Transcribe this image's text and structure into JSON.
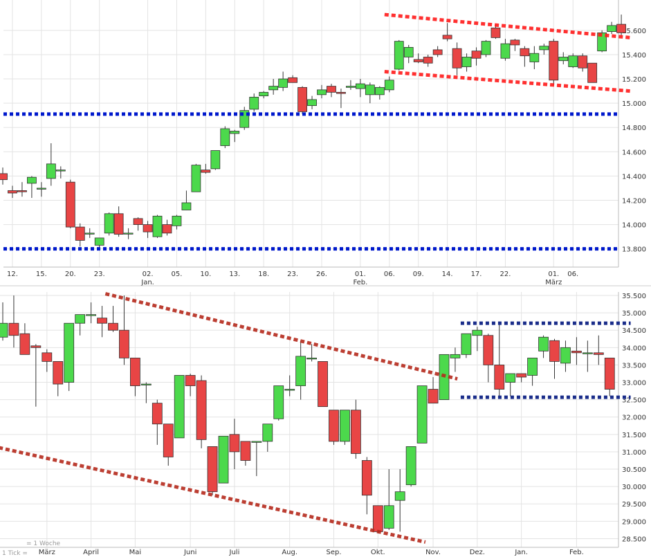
{
  "colors": {
    "up": "#4cd94c",
    "down": "#e84545",
    "wick": "#333333",
    "grid": "#e3e3e3",
    "support_blue": "#0019cc",
    "channel_red": "#ff1a1a",
    "channel_dark_red": "#b52a1c",
    "range_navy": "#1a2d8a"
  },
  "footer": {
    "tick_note": "1 Tick =",
    "period_note": "= 1 Woche"
  },
  "chart_data": [
    {
      "type": "candlestick",
      "interval": "daily",
      "grid": true,
      "ylim": [
        13.65,
        15.85
      ],
      "yticks": [
        13.8,
        14.0,
        14.2,
        14.4,
        14.6,
        14.8,
        15.0,
        15.2,
        15.4,
        15.6
      ],
      "ytick_labels": [
        "13.800",
        "14.000",
        "14.200",
        "14.400",
        "14.600",
        "14.800",
        "15.000",
        "15.200",
        "15.400",
        "15.600"
      ],
      "xtick_labels": [
        {
          "i": 1,
          "label": "12."
        },
        {
          "i": 4,
          "label": "15."
        },
        {
          "i": 7,
          "label": "20."
        },
        {
          "i": 10,
          "label": "23."
        },
        {
          "i": 15,
          "label": "02.",
          "sub": "Jan."
        },
        {
          "i": 18,
          "label": "05."
        },
        {
          "i": 21,
          "label": "10."
        },
        {
          "i": 24,
          "label": "13."
        },
        {
          "i": 27,
          "label": "18."
        },
        {
          "i": 30,
          "label": "23."
        },
        {
          "i": 33,
          "label": "26."
        },
        {
          "i": 37,
          "label": "01.",
          "sub": "Feb."
        },
        {
          "i": 40,
          "label": "06."
        },
        {
          "i": 43,
          "label": "09."
        },
        {
          "i": 46,
          "label": "14."
        },
        {
          "i": 49,
          "label": "17."
        },
        {
          "i": 52,
          "label": "22."
        },
        {
          "i": 57,
          "label": "01.",
          "sub": "März"
        },
        {
          "i": 59,
          "label": "06."
        }
      ],
      "candles": [
        {
          "o": 14.42,
          "h": 14.47,
          "l": 14.33,
          "c": 14.37
        },
        {
          "o": 14.28,
          "h": 14.32,
          "l": 14.22,
          "c": 14.26
        },
        {
          "o": 14.28,
          "h": 14.35,
          "l": 14.23,
          "c": 14.27
        },
        {
          "o": 14.34,
          "h": 14.4,
          "l": 14.22,
          "c": 14.39
        },
        {
          "o": 14.3,
          "h": 14.35,
          "l": 14.23,
          "c": 14.3
        },
        {
          "o": 14.38,
          "h": 14.67,
          "l": 14.32,
          "c": 14.5
        },
        {
          "o": 14.45,
          "h": 14.48,
          "l": 14.38,
          "c": 14.45
        },
        {
          "o": 14.35,
          "h": 14.37,
          "l": 13.97,
          "c": 13.98
        },
        {
          "o": 13.98,
          "h": 14.01,
          "l": 13.82,
          "c": 13.87
        },
        {
          "o": 13.93,
          "h": 13.97,
          "l": 13.89,
          "c": 13.93
        },
        {
          "o": 13.83,
          "h": 13.89,
          "l": 13.81,
          "c": 13.89
        },
        {
          "o": 13.93,
          "h": 14.1,
          "l": 13.91,
          "c": 14.09
        },
        {
          "o": 14.09,
          "h": 14.15,
          "l": 13.9,
          "c": 13.92
        },
        {
          "o": 13.93,
          "h": 13.97,
          "l": 13.88,
          "c": 13.93
        },
        {
          "o": 14.05,
          "h": 14.06,
          "l": 13.95,
          "c": 14.0
        },
        {
          "o": 14.0,
          "h": 14.03,
          "l": 13.89,
          "c": 13.94
        },
        {
          "o": 13.9,
          "h": 14.08,
          "l": 13.89,
          "c": 14.07
        },
        {
          "o": 14.0,
          "h": 14.04,
          "l": 13.91,
          "c": 13.93
        },
        {
          "o": 13.99,
          "h": 14.08,
          "l": 13.96,
          "c": 14.07
        },
        {
          "o": 14.12,
          "h": 14.28,
          "l": 14.12,
          "c": 14.18
        },
        {
          "o": 14.27,
          "h": 14.5,
          "l": 14.27,
          "c": 14.49
        },
        {
          "o": 14.45,
          "h": 14.5,
          "l": 14.42,
          "c": 14.43
        },
        {
          "o": 14.46,
          "h": 14.61,
          "l": 14.45,
          "c": 14.61
        },
        {
          "o": 14.65,
          "h": 14.81,
          "l": 14.63,
          "c": 14.79
        },
        {
          "o": 14.75,
          "h": 14.78,
          "l": 14.68,
          "c": 14.77
        },
        {
          "o": 14.8,
          "h": 14.97,
          "l": 14.78,
          "c": 14.94
        },
        {
          "o": 14.95,
          "h": 15.08,
          "l": 14.93,
          "c": 15.05
        },
        {
          "o": 15.06,
          "h": 15.1,
          "l": 15.04,
          "c": 15.09
        },
        {
          "o": 15.11,
          "h": 15.2,
          "l": 15.07,
          "c": 15.14
        },
        {
          "o": 15.13,
          "h": 15.26,
          "l": 15.1,
          "c": 15.2
        },
        {
          "o": 15.21,
          "h": 15.23,
          "l": 15.17,
          "c": 15.17
        },
        {
          "o": 15.13,
          "h": 15.14,
          "l": 14.91,
          "c": 14.93
        },
        {
          "o": 14.98,
          "h": 15.06,
          "l": 14.95,
          "c": 15.03
        },
        {
          "o": 15.07,
          "h": 15.15,
          "l": 15.04,
          "c": 15.11
        },
        {
          "o": 15.14,
          "h": 15.16,
          "l": 15.05,
          "c": 15.09
        },
        {
          "o": 15.09,
          "h": 15.12,
          "l": 14.96,
          "c": 15.08
        },
        {
          "o": 15.13,
          "h": 15.19,
          "l": 15.11,
          "c": 15.14
        },
        {
          "o": 15.12,
          "h": 15.2,
          "l": 15.05,
          "c": 15.16
        },
        {
          "o": 15.07,
          "h": 15.17,
          "l": 15.0,
          "c": 15.15
        },
        {
          "o": 15.07,
          "h": 15.14,
          "l": 15.03,
          "c": 15.13
        },
        {
          "o": 15.11,
          "h": 15.22,
          "l": 15.09,
          "c": 15.19
        },
        {
          "o": 15.28,
          "h": 15.52,
          "l": 15.27,
          "c": 15.51
        },
        {
          "o": 15.38,
          "h": 15.48,
          "l": 15.33,
          "c": 15.46
        },
        {
          "o": 15.36,
          "h": 15.41,
          "l": 15.33,
          "c": 15.34
        },
        {
          "o": 15.38,
          "h": 15.4,
          "l": 15.3,
          "c": 15.33
        },
        {
          "o": 15.44,
          "h": 15.47,
          "l": 15.38,
          "c": 15.4
        },
        {
          "o": 15.56,
          "h": 15.66,
          "l": 15.51,
          "c": 15.53
        },
        {
          "o": 15.45,
          "h": 15.5,
          "l": 15.23,
          "c": 15.29
        },
        {
          "o": 15.3,
          "h": 15.41,
          "l": 15.26,
          "c": 15.38
        },
        {
          "o": 15.43,
          "h": 15.46,
          "l": 15.31,
          "c": 15.37
        },
        {
          "o": 15.4,
          "h": 15.52,
          "l": 15.38,
          "c": 15.51
        },
        {
          "o": 15.62,
          "h": 15.65,
          "l": 15.53,
          "c": 15.54
        },
        {
          "o": 15.37,
          "h": 15.53,
          "l": 15.35,
          "c": 15.49
        },
        {
          "o": 15.52,
          "h": 15.53,
          "l": 15.43,
          "c": 15.48
        },
        {
          "o": 15.45,
          "h": 15.47,
          "l": 15.3,
          "c": 15.39
        },
        {
          "o": 15.34,
          "h": 15.47,
          "l": 15.28,
          "c": 15.41
        },
        {
          "o": 15.44,
          "h": 15.49,
          "l": 15.4,
          "c": 15.47
        },
        {
          "o": 15.51,
          "h": 15.53,
          "l": 15.15,
          "c": 15.19
        },
        {
          "o": 15.35,
          "h": 15.42,
          "l": 15.32,
          "c": 15.38
        },
        {
          "o": 15.3,
          "h": 15.41,
          "l": 15.29,
          "c": 15.39
        },
        {
          "o": 15.39,
          "h": 15.41,
          "l": 15.26,
          "c": 15.29
        },
        {
          "o": 15.33,
          "h": 15.33,
          "l": 15.17,
          "c": 15.17
        },
        {
          "o": 15.43,
          "h": 15.6,
          "l": 15.42,
          "c": 15.58
        },
        {
          "o": 15.59,
          "h": 15.67,
          "l": 15.57,
          "c": 15.64
        },
        {
          "o": 15.65,
          "h": 15.73,
          "l": 15.55,
          "c": 15.58
        }
      ],
      "overlays": [
        {
          "kind": "support",
          "color_key": "support_blue",
          "y": 14.91
        },
        {
          "kind": "support",
          "color_key": "support_blue",
          "y": 13.8
        },
        {
          "kind": "channel",
          "color_key": "channel_red",
          "i0": 39.5,
          "v0": 15.73,
          "i1": 64.9,
          "v1": 15.54
        },
        {
          "kind": "channel",
          "color_key": "channel_red",
          "i0": 39.5,
          "v0": 15.26,
          "i1": 64.9,
          "v1": 15.1
        }
      ]
    },
    {
      "type": "candlestick",
      "interval": "weekly",
      "grid": true,
      "ylim": [
        28.25,
        35.6
      ],
      "yticks": [
        28.5,
        29.0,
        29.5,
        30.0,
        30.5,
        31.0,
        31.5,
        32.0,
        32.5,
        33.0,
        33.5,
        34.0,
        34.5,
        35.0,
        35.5
      ],
      "ytick_labels": [
        "28.500",
        "29.000",
        "29.500",
        "30.000",
        "30.500",
        "31.000",
        "31.500",
        "32.000",
        "32.500",
        "33.000",
        "33.500",
        "34.000",
        "34.500",
        "35.000",
        "35.500"
      ],
      "xtick_labels": [
        {
          "i": 4,
          "label": "März"
        },
        {
          "i": 8,
          "label": "April"
        },
        {
          "i": 12,
          "label": "Mai"
        },
        {
          "i": 17,
          "label": "Juni"
        },
        {
          "i": 21,
          "label": "Juli"
        },
        {
          "i": 26,
          "label": "Aug."
        },
        {
          "i": 30,
          "label": "Sep."
        },
        {
          "i": 34,
          "label": "Okt."
        },
        {
          "i": 39,
          "label": "Nov."
        },
        {
          "i": 43,
          "label": "Dez."
        },
        {
          "i": 47,
          "label": "Jan."
        },
        {
          "i": 52,
          "label": "Feb."
        }
      ],
      "candles": [
        {
          "o": 34.3,
          "h": 35.3,
          "l": 34.2,
          "c": 34.7
        },
        {
          "o": 34.7,
          "h": 35.5,
          "l": 34.0,
          "c": 34.35
        },
        {
          "o": 34.4,
          "h": 34.7,
          "l": 33.8,
          "c": 33.8
        },
        {
          "o": 34.05,
          "h": 34.1,
          "l": 32.3,
          "c": 34.0
        },
        {
          "o": 33.85,
          "h": 33.95,
          "l": 33.3,
          "c": 33.6
        },
        {
          "o": 33.6,
          "h": 33.6,
          "l": 32.6,
          "c": 32.95
        },
        {
          "o": 33.0,
          "h": 34.7,
          "l": 32.75,
          "c": 34.7
        },
        {
          "o": 34.7,
          "h": 34.95,
          "l": 34.35,
          "c": 34.95
        },
        {
          "o": 34.95,
          "h": 35.3,
          "l": 34.7,
          "c": 34.95
        },
        {
          "o": 34.85,
          "h": 35.2,
          "l": 34.3,
          "c": 34.7
        },
        {
          "o": 34.7,
          "h": 35.2,
          "l": 34.45,
          "c": 34.5
        },
        {
          "o": 34.5,
          "h": 35.5,
          "l": 33.5,
          "c": 33.7
        },
        {
          "o": 33.7,
          "h": 33.7,
          "l": 32.6,
          "c": 32.9
        },
        {
          "o": 32.95,
          "h": 33.0,
          "l": 32.4,
          "c": 32.95
        },
        {
          "o": 32.4,
          "h": 32.5,
          "l": 31.2,
          "c": 31.8
        },
        {
          "o": 31.8,
          "h": 31.8,
          "l": 30.6,
          "c": 30.85
        },
        {
          "o": 31.4,
          "h": 33.2,
          "l": 31.4,
          "c": 33.2
        },
        {
          "o": 33.2,
          "h": 33.25,
          "l": 32.6,
          "c": 32.9
        },
        {
          "o": 33.05,
          "h": 33.2,
          "l": 31.1,
          "c": 31.35
        },
        {
          "o": 31.15,
          "h": 31.15,
          "l": 29.75,
          "c": 29.85
        },
        {
          "o": 30.1,
          "h": 31.45,
          "l": 30.1,
          "c": 31.45
        },
        {
          "o": 31.5,
          "h": 31.95,
          "l": 30.5,
          "c": 31.0
        },
        {
          "o": 31.3,
          "h": 31.3,
          "l": 30.6,
          "c": 30.75
        },
        {
          "o": 31.3,
          "h": 31.3,
          "l": 30.3,
          "c": 31.3
        },
        {
          "o": 31.3,
          "h": 31.8,
          "l": 31.0,
          "c": 31.8
        },
        {
          "o": 31.95,
          "h": 32.9,
          "l": 31.9,
          "c": 32.9
        },
        {
          "o": 32.8,
          "h": 33.2,
          "l": 32.6,
          "c": 32.8
        },
        {
          "o": 32.9,
          "h": 34.2,
          "l": 32.5,
          "c": 33.75
        },
        {
          "o": 33.7,
          "h": 34.1,
          "l": 33.6,
          "c": 33.7
        },
        {
          "o": 33.6,
          "h": 33.6,
          "l": 32.3,
          "c": 32.3
        },
        {
          "o": 32.2,
          "h": 32.2,
          "l": 31.2,
          "c": 31.3
        },
        {
          "o": 31.3,
          "h": 32.2,
          "l": 31.2,
          "c": 32.2
        },
        {
          "o": 32.2,
          "h": 32.5,
          "l": 30.8,
          "c": 30.95
        },
        {
          "o": 30.75,
          "h": 30.85,
          "l": 29.2,
          "c": 29.75
        },
        {
          "o": 29.45,
          "h": 29.45,
          "l": 28.65,
          "c": 28.7
        },
        {
          "o": 28.8,
          "h": 30.5,
          "l": 28.75,
          "c": 29.45
        },
        {
          "o": 29.6,
          "h": 30.5,
          "l": 28.7,
          "c": 29.85
        },
        {
          "o": 30.05,
          "h": 31.15,
          "l": 30.0,
          "c": 31.15
        },
        {
          "o": 31.25,
          "h": 32.9,
          "l": 31.25,
          "c": 32.9
        },
        {
          "o": 32.8,
          "h": 33.15,
          "l": 32.4,
          "c": 32.4
        },
        {
          "o": 32.5,
          "h": 33.8,
          "l": 32.5,
          "c": 33.8
        },
        {
          "o": 33.7,
          "h": 34.0,
          "l": 33.3,
          "c": 33.8
        },
        {
          "o": 33.8,
          "h": 34.4,
          "l": 33.7,
          "c": 34.4
        },
        {
          "o": 34.35,
          "h": 34.6,
          "l": 33.9,
          "c": 34.5
        },
        {
          "o": 34.35,
          "h": 34.4,
          "l": 33.0,
          "c": 33.5
        },
        {
          "o": 33.5,
          "h": 34.75,
          "l": 32.6,
          "c": 32.8
        },
        {
          "o": 33.0,
          "h": 33.2,
          "l": 32.6,
          "c": 33.25
        },
        {
          "o": 33.25,
          "h": 33.25,
          "l": 33.0,
          "c": 33.15
        },
        {
          "o": 33.2,
          "h": 33.7,
          "l": 32.9,
          "c": 33.7
        },
        {
          "o": 33.9,
          "h": 34.35,
          "l": 33.7,
          "c": 34.3
        },
        {
          "o": 34.2,
          "h": 34.25,
          "l": 33.1,
          "c": 33.6
        },
        {
          "o": 33.55,
          "h": 34.2,
          "l": 33.3,
          "c": 34.0
        },
        {
          "o": 33.9,
          "h": 34.3,
          "l": 33.5,
          "c": 33.85
        },
        {
          "o": 33.85,
          "h": 34.2,
          "l": 33.3,
          "c": 33.85
        },
        {
          "o": 33.85,
          "h": 34.35,
          "l": 33.5,
          "c": 33.8
        },
        {
          "o": 33.7,
          "h": 33.7,
          "l": 32.6,
          "c": 32.8
        }
      ],
      "overlays": [
        {
          "kind": "range",
          "color_key": "range_navy",
          "y": 34.7,
          "i0": 41.5,
          "i1": 56.9
        },
        {
          "kind": "range",
          "color_key": "range_navy",
          "y": 32.57,
          "i0": 41.5,
          "i1": 56.9
        },
        {
          "kind": "channel",
          "color_key": "channel_dark_red",
          "i0": 9.3,
          "v0": 35.55,
          "i1": 41.2,
          "v1": 33.1
        },
        {
          "kind": "channel",
          "color_key": "channel_dark_red",
          "i0": -2.2,
          "v0": 31.25,
          "i1": 38.3,
          "v1": 28.4
        }
      ]
    }
  ]
}
